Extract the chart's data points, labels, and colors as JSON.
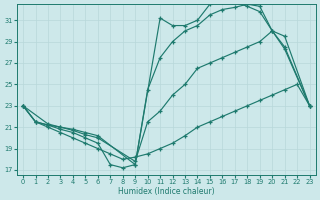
{
  "xlabel": "Humidex (Indice chaleur)",
  "xlim": [
    -0.5,
    23.5
  ],
  "ylim": [
    16.5,
    32.5
  ],
  "xticks": [
    0,
    1,
    2,
    3,
    4,
    5,
    6,
    7,
    8,
    9,
    10,
    11,
    12,
    13,
    14,
    15,
    16,
    17,
    18,
    19,
    20,
    21,
    22,
    23
  ],
  "yticks": [
    17,
    19,
    21,
    23,
    25,
    27,
    29,
    31
  ],
  "bg_color": "#cde8ea",
  "grid_color": "#b8d8da",
  "line_color": "#1e7a6e",
  "lines": [
    {
      "x": [
        0,
        1,
        2,
        3,
        4,
        5,
        6,
        7,
        8,
        9,
        11,
        12,
        13,
        14,
        15,
        16,
        17,
        18,
        19,
        20,
        21,
        23
      ],
      "y": [
        23,
        21.5,
        21.2,
        20.8,
        20.5,
        20.0,
        19.5,
        17.5,
        17.2,
        17.5,
        31.2,
        30.5,
        30.5,
        31.0,
        32.5,
        32.7,
        32.7,
        32.3,
        31.8,
        30.0,
        28.3,
        23.0
      ]
    },
    {
      "x": [
        0,
        1,
        2,
        3,
        4,
        5,
        6,
        9,
        10,
        11,
        12,
        13,
        14,
        15,
        16,
        17,
        18,
        19,
        20,
        21,
        23
      ],
      "y": [
        23,
        21.5,
        21.2,
        21.0,
        20.8,
        20.5,
        20.2,
        17.5,
        24.5,
        27.5,
        29.0,
        30.0,
        30.5,
        31.5,
        32.0,
        32.2,
        32.5,
        32.3,
        30.0,
        28.5,
        23.0
      ]
    },
    {
      "x": [
        0,
        2,
        3,
        4,
        5,
        6,
        9,
        10,
        11,
        12,
        13,
        14,
        15,
        16,
        17,
        18,
        19,
        20,
        21,
        23
      ],
      "y": [
        23,
        21.3,
        21.0,
        20.7,
        20.3,
        20.0,
        17.8,
        21.5,
        22.5,
        24.0,
        25.0,
        26.5,
        27.0,
        27.5,
        28.0,
        28.5,
        29.0,
        30.0,
        29.5,
        23.0
      ]
    },
    {
      "x": [
        0,
        1,
        2,
        3,
        4,
        5,
        6,
        7,
        8,
        9,
        10,
        11,
        12,
        13,
        14,
        15,
        16,
        17,
        18,
        19,
        20,
        21,
        22,
        23
      ],
      "y": [
        23,
        21.5,
        21.0,
        20.5,
        20.0,
        19.5,
        19.0,
        18.5,
        18.0,
        18.2,
        18.5,
        19.0,
        19.5,
        20.2,
        21.0,
        21.5,
        22.0,
        22.5,
        23.0,
        23.5,
        24.0,
        24.5,
        25.0,
        23.0
      ]
    }
  ]
}
